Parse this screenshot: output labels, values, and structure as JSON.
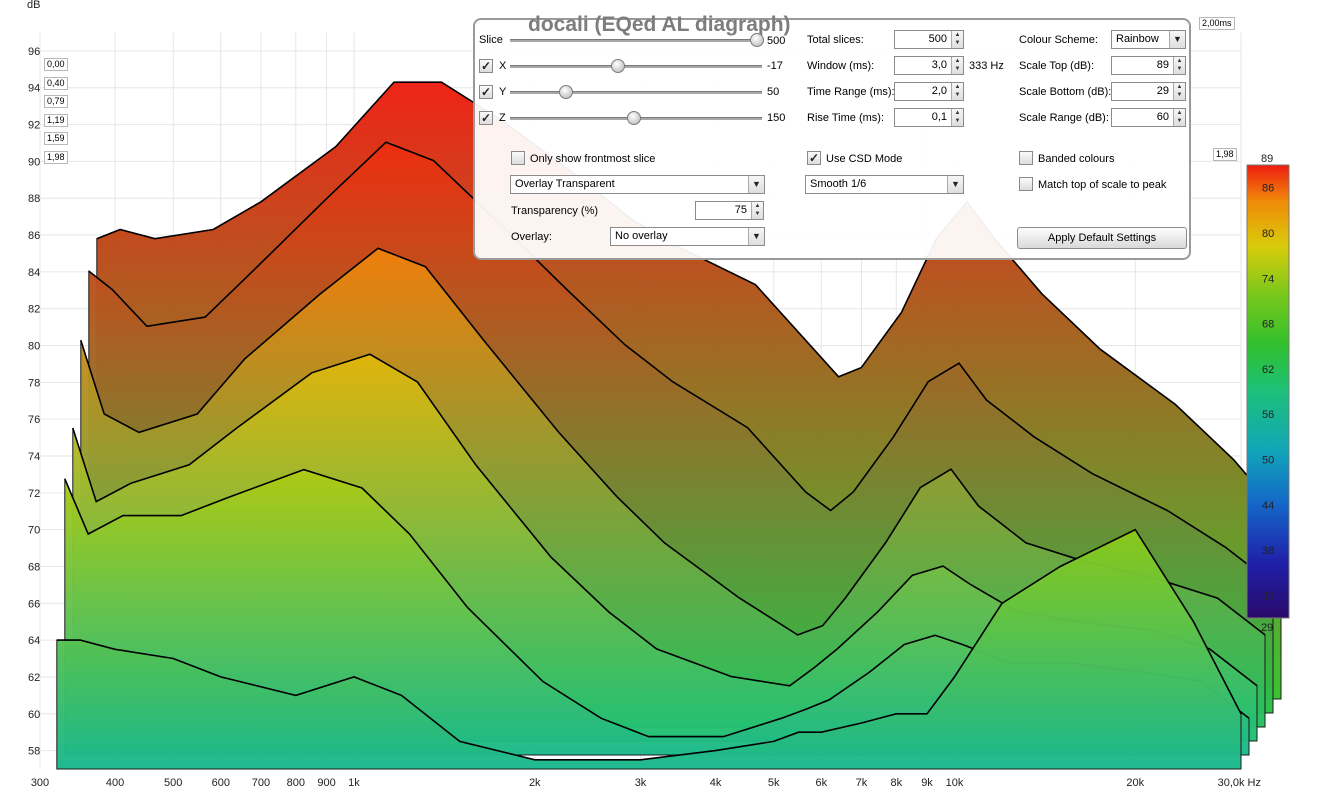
{
  "chart_data": {
    "type": "area",
    "subtype": "waterfall-3d (CSD)",
    "title": "docali (EQed AL diagraph)",
    "ylabel": "dB",
    "xlabel": "Hz",
    "x_unit": "Hz",
    "x_scale": "log",
    "xlim": [
      300,
      30000
    ],
    "ylim": [
      57,
      97
    ],
    "x_ticks": [
      300,
      400,
      500,
      600,
      700,
      800,
      900,
      1000,
      2000,
      3000,
      4000,
      5000,
      6000,
      7000,
      8000,
      9000,
      10000,
      20000,
      30000
    ],
    "x_tick_labels": [
      "300",
      "400",
      "500",
      "600",
      "700",
      "800",
      "900",
      "1k",
      "2k",
      "3k",
      "4k",
      "5k",
      "6k",
      "7k",
      "8k",
      "9k",
      "10k",
      "20k",
      "30,0k Hz"
    ],
    "y_ticks": [
      58,
      60,
      62,
      64,
      66,
      68,
      70,
      72,
      74,
      76,
      78,
      80,
      82,
      84,
      86,
      88,
      90,
      92,
      94,
      96
    ],
    "y_tick_labels": [
      "58",
      "60",
      "62",
      "64",
      "66",
      "68",
      "70",
      "72",
      "74",
      "76",
      "78",
      "80",
      "82",
      "84",
      "86",
      "88",
      "90",
      "92",
      "94",
      "96"
    ],
    "time_axis_labels": [
      "0,00",
      "0,40",
      "0,79",
      "1,19",
      "1,59",
      "1,98"
    ],
    "time_end_label": "2,00ms",
    "time_right_label": "1,98",
    "colorbar": {
      "scheme": "Rainbow",
      "min": 29,
      "max": 89,
      "ticks": [
        32,
        38,
        44,
        50,
        56,
        62,
        68,
        74,
        80,
        86
      ],
      "top_label": "89",
      "bottom_label": "29"
    },
    "series": [
      {
        "slice_ms": 0.0,
        "x": [
          320,
          350,
          400,
          500,
          600,
          800,
          1000,
          1200,
          1500,
          2000,
          2500,
          3000,
          4000,
          5000,
          5500,
          6000,
          7000,
          8000,
          9000,
          10000,
          12000,
          15000,
          20000,
          25000,
          30000
        ],
        "y": [
          82,
          82.5,
          82,
          82.5,
          84,
          87,
          90.5,
          90.5,
          88.5,
          85.5,
          83,
          81.5,
          79.5,
          76,
          74.5,
          75,
          78,
          82,
          84,
          82,
          79,
          76,
          73,
          70,
          67
        ]
      },
      {
        "slice_ms": 0.4,
        "x": [
          320,
          350,
          400,
          500,
          600,
          800,
          1000,
          1200,
          1500,
          2000,
          2500,
          3000,
          4000,
          5000,
          5500,
          6000,
          7000,
          8000,
          9000,
          10000,
          12000,
          15000,
          20000,
          25000,
          30000
        ],
        "y": [
          81,
          80,
          78,
          78.5,
          81,
          85,
          88,
          87,
          84,
          80,
          77,
          75,
          72.5,
          69,
          68,
          69,
          72,
          75,
          76,
          74,
          72,
          70,
          68,
          66,
          64
        ]
      },
      {
        "slice_ms": 0.79,
        "x": [
          320,
          350,
          400,
          500,
          600,
          800,
          1000,
          1200,
          1500,
          2000,
          2500,
          3000,
          4000,
          5000,
          5500,
          6000,
          7000,
          8000,
          9000,
          10000,
          12000,
          15000,
          20000,
          25000,
          30000
        ],
        "y": [
          78,
          74,
          73,
          74,
          77,
          80.5,
          83,
          82,
          78,
          73,
          69.5,
          67,
          64,
          62,
          62.5,
          64,
          67,
          70,
          71,
          69,
          67,
          66,
          65,
          64,
          62
        ]
      },
      {
        "slice_ms": 1.19,
        "x": [
          320,
          350,
          400,
          500,
          600,
          800,
          1000,
          1200,
          1500,
          2000,
          2500,
          3000,
          4000,
          5000,
          5500,
          6000,
          7000,
          8000,
          9000,
          10000,
          12000,
          15000,
          20000,
          25000,
          30000
        ],
        "y": [
          74,
          70,
          71,
          72,
          74,
          77,
          78,
          76.5,
          72,
          67,
          64,
          62,
          60.5,
          60,
          61,
          62,
          64,
          66,
          66.5,
          65.5,
          64,
          63.5,
          63,
          62,
          60
        ]
      },
      {
        "slice_ms": 1.59,
        "x": [
          320,
          350,
          400,
          500,
          600,
          800,
          1000,
          1200,
          1500,
          2000,
          2500,
          3000,
          4000,
          5000,
          5500,
          6000,
          7000,
          8000,
          9000,
          10000,
          12000,
          15000,
          20000,
          25000,
          30000
        ],
        "y": [
          72,
          69,
          70,
          70,
          71,
          72.5,
          71.5,
          69,
          65,
          61,
          59,
          58,
          58,
          59,
          59.5,
          60,
          61.5,
          63,
          63.5,
          63,
          62,
          62,
          61.5,
          61,
          59
        ]
      },
      {
        "slice_ms": 1.98,
        "x": [
          320,
          350,
          400,
          500,
          600,
          800,
          1000,
          1200,
          1500,
          2000,
          2500,
          3000,
          4000,
          5000,
          5500,
          6000,
          7000,
          8000,
          9000,
          10000,
          12000,
          15000,
          20000,
          25000,
          30000
        ],
        "y": [
          64,
          64,
          63.5,
          63,
          62,
          61,
          62,
          61,
          58.5,
          57.5,
          57.5,
          57.5,
          58,
          58.5,
          59,
          59,
          59.5,
          60,
          60,
          62,
          66,
          68,
          70,
          65,
          60
        ]
      }
    ]
  },
  "controls": {
    "slice_label": "Slice",
    "slice_value": "500",
    "slice_pos": 1.0,
    "x_label": "X",
    "x_value": "-17",
    "x_pos": 0.435,
    "y_label": "Y",
    "y_value": "50",
    "y_pos": 0.225,
    "z_label": "Z",
    "z_value": "150",
    "z_pos": 0.5,
    "x_checked": true,
    "y_checked": true,
    "z_checked": true,
    "frontmost_label": "Only show frontmost slice",
    "frontmost_checked": false,
    "overlay_mode": "Overlay Transparent",
    "transparency_label": "Transparency (%)",
    "transparency_value": "75",
    "overlay_label": "Overlay:",
    "overlay_value": "No overlay",
    "total_slices_label": "Total slices:",
    "total_slices_value": "500",
    "window_label": "Window (ms):",
    "window_value": "3,0",
    "window_hz": "333 Hz",
    "time_range_label": "Time Range (ms):",
    "time_range_value": "2,0",
    "rise_time_label": "Rise Time (ms):",
    "rise_time_value": "0,1",
    "csd_label": "Use CSD Mode",
    "csd_checked": true,
    "smoothing_value": "Smooth 1/6",
    "colour_scheme_label": "Colour Scheme:",
    "colour_scheme_value": "Rainbow",
    "scale_top_label": "Scale Top (dB):",
    "scale_top_value": "89",
    "scale_bottom_label": "Scale Bottom (dB):",
    "scale_bottom_value": "29",
    "scale_range_label": "Scale Range (dB):",
    "scale_range_value": "60",
    "banded_label": "Banded colours",
    "banded_checked": false,
    "match_top_label": "Match top of scale to peak",
    "match_top_checked": false,
    "apply_default_label": "Apply Default Settings"
  },
  "colors": {
    "rainbow": [
      "#2a0a6b",
      "#1f1fa8",
      "#1466c8",
      "#10a6b8",
      "#1cc07a",
      "#2fbf2f",
      "#7ec81a",
      "#d9cc0a",
      "#f08a0a",
      "#ee1d10"
    ],
    "panel_border": "#9a9a9a",
    "title": "#7d7d7d"
  }
}
